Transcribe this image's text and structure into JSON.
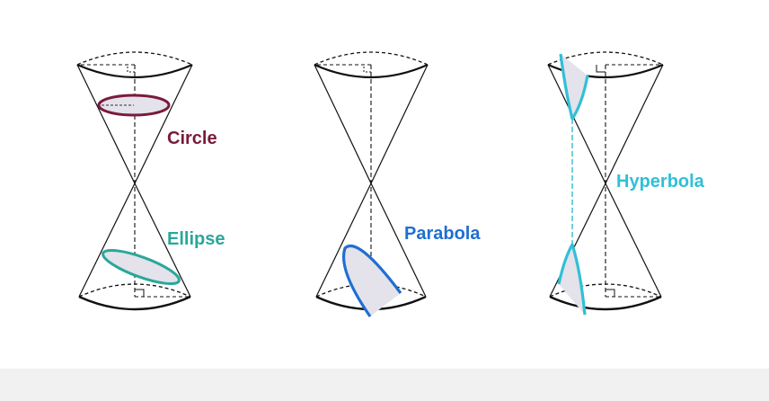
{
  "labels": {
    "circle": "Circle",
    "ellipse": "Ellipse",
    "parabola": "Parabola",
    "hyperbola": "Hyperbola"
  },
  "colors": {
    "circle": "#7a1a3c",
    "ellipse": "#2aa79b",
    "parabola": "#1f6fd1",
    "hyperbola": "#2fc0d6",
    "outline": "#111111",
    "section_fill": "#e4e2ea"
  }
}
